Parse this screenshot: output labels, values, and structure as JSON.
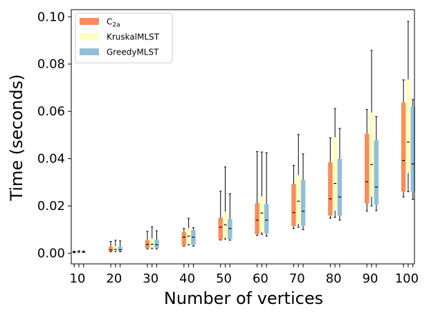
{
  "chart_data": {
    "type": "boxplot",
    "title": "",
    "xlabel": "Number of vertices",
    "ylabel": "Time (seconds)",
    "ylim": [
      -0.0045,
      0.103
    ],
    "yticks": [
      "0.00",
      "0.02",
      "0.04",
      "0.06",
      "0.08",
      "0.10"
    ],
    "ytick_values": [
      0,
      0.02,
      0.04,
      0.06,
      0.08,
      0.1
    ],
    "categories": [
      "10",
      "20",
      "30",
      "40",
      "50",
      "60",
      "70",
      "80",
      "90",
      "100"
    ],
    "legend_position": "top-left",
    "series": [
      {
        "name": "C",
        "name_sub": "2a",
        "color": "#fc8d59",
        "boxes": [
          {
            "whislo": 0.0002,
            "q1": 0.0003,
            "med": 0.0005,
            "q3": 0.0008,
            "whishi": 0.0009
          },
          {
            "whislo": 0.0006,
            "q1": 0.0008,
            "med": 0.0014,
            "q3": 0.0027,
            "whishi": 0.005
          },
          {
            "whislo": 0.0018,
            "q1": 0.0021,
            "med": 0.0037,
            "q3": 0.0055,
            "whishi": 0.0093
          },
          {
            "whislo": 0.003,
            "q1": 0.0032,
            "med": 0.0068,
            "q3": 0.009,
            "whishi": 0.0105
          },
          {
            "whislo": 0.0056,
            "q1": 0.0058,
            "med": 0.011,
            "q3": 0.015,
            "whishi": 0.0262
          },
          {
            "whislo": 0.0075,
            "q1": 0.008,
            "med": 0.014,
            "q3": 0.0212,
            "whishi": 0.043
          },
          {
            "whislo": 0.0105,
            "q1": 0.0115,
            "med": 0.0172,
            "q3": 0.0293,
            "whishi": 0.0372
          },
          {
            "whislo": 0.0148,
            "q1": 0.016,
            "med": 0.023,
            "q3": 0.0385,
            "whishi": 0.0488
          },
          {
            "whislo": 0.0178,
            "q1": 0.021,
            "med": 0.0302,
            "q3": 0.0505,
            "whishi": 0.0608
          },
          {
            "whislo": 0.0238,
            "q1": 0.026,
            "med": 0.0392,
            "q3": 0.0637,
            "whishi": 0.0733
          }
        ]
      },
      {
        "name": "KruskalMLST",
        "name_sub": "",
        "color": "#ffffbf",
        "boxes": [
          {
            "whislo": 0.0004,
            "q1": 0.0005,
            "med": 0.0006,
            "q3": 0.0009,
            "whishi": 0.0011
          },
          {
            "whislo": 0.0007,
            "q1": 0.001,
            "med": 0.0016,
            "q3": 0.003,
            "whishi": 0.0055
          },
          {
            "whislo": 0.002,
            "q1": 0.0024,
            "med": 0.0038,
            "q3": 0.0062,
            "whishi": 0.0112
          },
          {
            "whislo": 0.0035,
            "q1": 0.004,
            "med": 0.0072,
            "q3": 0.0106,
            "whishi": 0.0148
          },
          {
            "whislo": 0.006,
            "q1": 0.0065,
            "med": 0.012,
            "q3": 0.0175,
            "whishi": 0.0365
          },
          {
            "whislo": 0.008,
            "q1": 0.009,
            "med": 0.017,
            "q3": 0.024,
            "whishi": 0.0428
          },
          {
            "whislo": 0.011,
            "q1": 0.0125,
            "med": 0.022,
            "q3": 0.033,
            "whishi": 0.0502
          },
          {
            "whislo": 0.0152,
            "q1": 0.018,
            "med": 0.0295,
            "q3": 0.049,
            "whishi": 0.0612
          },
          {
            "whislo": 0.02,
            "q1": 0.024,
            "med": 0.0375,
            "q3": 0.0595,
            "whishi": 0.0858
          },
          {
            "whislo": 0.026,
            "q1": 0.034,
            "med": 0.047,
            "q3": 0.0735,
            "whishi": 0.098
          }
        ]
      },
      {
        "name": "GreedyMLST",
        "name_sub": "",
        "color": "#91bfdb",
        "boxes": [
          {
            "whislo": 0.0003,
            "q1": 0.0004,
            "med": 0.0005,
            "q3": 0.0008,
            "whishi": 0.001
          },
          {
            "whislo": 0.0006,
            "q1": 0.0009,
            "med": 0.0015,
            "q3": 0.0028,
            "whishi": 0.0052
          },
          {
            "whislo": 0.0018,
            "q1": 0.0022,
            "med": 0.0036,
            "q3": 0.0057,
            "whishi": 0.0095
          },
          {
            "whislo": 0.003,
            "q1": 0.0035,
            "med": 0.0068,
            "q3": 0.0098,
            "whishi": 0.0108
          },
          {
            "whislo": 0.0055,
            "q1": 0.006,
            "med": 0.0105,
            "q3": 0.0145,
            "whishi": 0.0252
          },
          {
            "whislo": 0.0072,
            "q1": 0.0085,
            "med": 0.014,
            "q3": 0.0208,
            "whishi": 0.0425
          },
          {
            "whislo": 0.01,
            "q1": 0.0115,
            "med": 0.0178,
            "q3": 0.031,
            "whishi": 0.042
          },
          {
            "whislo": 0.014,
            "q1": 0.016,
            "med": 0.0238,
            "q3": 0.04,
            "whishi": 0.0528
          },
          {
            "whislo": 0.018,
            "q1": 0.0205,
            "med": 0.028,
            "q3": 0.0478,
            "whishi": 0.0578
          },
          {
            "whislo": 0.0228,
            "q1": 0.026,
            "med": 0.0378,
            "q3": 0.062,
            "whishi": 0.065
          }
        ]
      }
    ]
  }
}
